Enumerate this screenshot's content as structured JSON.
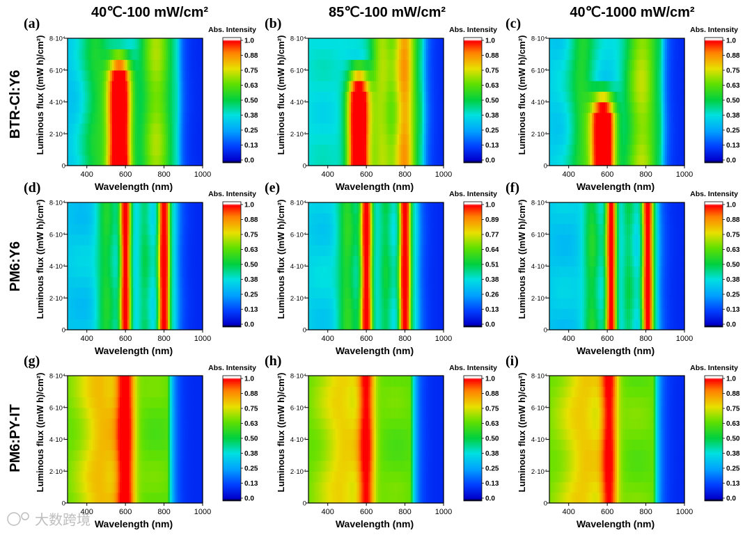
{
  "figure": {
    "column_titles": [
      "40℃-100 mW/cm²",
      "85℃-100 mW/cm²",
      "40℃-1000 mW/cm²"
    ],
    "row_titles": [
      "BTR-Cl:Y6",
      "PM6:Y6",
      "PM6:PY-IT"
    ],
    "watermark": "大数跨境"
  },
  "chart_data": [
    {
      "label": "(a)",
      "type": "heatmap",
      "row": 0,
      "col": 0,
      "material": "BTR-Cl:Y6",
      "condition": "40℃-100 mW/cm²",
      "xlabel": "Wavelength (nm)",
      "ylabel": "Luminous flux ((mW h)/cm²)",
      "xlim": [
        300,
        1000
      ],
      "ylim": [
        0,
        80000
      ],
      "xticks": [
        400,
        600,
        800,
        1000
      ],
      "yticks": [
        "0",
        "2·10⁴",
        "4·10⁴",
        "6·10⁴",
        "8·10⁴"
      ],
      "colorbar_title": "Abs. Intensity",
      "colorbar_ticks": [
        "1.0",
        "0.88",
        "0.75",
        "0.63",
        "0.50",
        "0.38",
        "0.25",
        "0.13",
        "0.0"
      ],
      "peaks": [
        {
          "center": 570,
          "width": 60,
          "amp": 0.95,
          "top_flux": 55000
        },
        {
          "center": 760,
          "width": 90,
          "amp": 0.35
        },
        {
          "center": 450,
          "width": 80,
          "amp": 0.2
        }
      ],
      "base": 0.32,
      "edge_nm": 870
    },
    {
      "label": "(b)",
      "type": "heatmap",
      "row": 0,
      "col": 1,
      "material": "BTR-Cl:Y6",
      "condition": "85℃-100 mW/cm²",
      "xlabel": "Wavelength (nm)",
      "ylabel": "Luminous flux ((mW h)/cm²)",
      "xlim": [
        300,
        1000
      ],
      "ylim": [
        0,
        80000
      ],
      "xticks": [
        400,
        600,
        800,
        1000
      ],
      "yticks": [
        "0",
        "2·10⁴",
        "4·10⁴",
        "6·10⁴",
        "8·10⁴"
      ],
      "colorbar_title": "Abs. Intensity",
      "colorbar_ticks": [
        "1.0",
        "0.88",
        "0.75",
        "0.63",
        "0.50",
        "0.38",
        "0.25",
        "0.13",
        "0.0"
      ],
      "peaks": [
        {
          "center": 560,
          "width": 55,
          "amp": 0.9,
          "top_flux": 45000
        },
        {
          "center": 800,
          "width": 60,
          "amp": 0.45
        },
        {
          "center": 680,
          "width": 60,
          "amp": 0.3
        }
      ],
      "base": 0.38,
      "edge_nm": 890
    },
    {
      "label": "(c)",
      "type": "heatmap",
      "row": 0,
      "col": 2,
      "material": "BTR-Cl:Y6",
      "condition": "40℃-1000 mW/cm²",
      "xlabel": "Wavelength (nm)",
      "ylabel": "Luminous flux ((mW h)/cm²)",
      "xlim": [
        300,
        1000
      ],
      "ylim": [
        0,
        80000
      ],
      "xticks": [
        400,
        600,
        800,
        1000
      ],
      "yticks": [
        "0",
        "2·10⁴",
        "4·10⁴",
        "6·10⁴",
        "8·10⁴"
      ],
      "colorbar_title": "Abs. Intensity",
      "colorbar_ticks": [
        "1.0",
        "0.88",
        "0.75",
        "0.63",
        "0.50",
        "0.38",
        "0.25",
        "0.13",
        "0.0"
      ],
      "peaks": [
        {
          "center": 580,
          "width": 60,
          "amp": 0.95,
          "top_flux": 30000
        },
        {
          "center": 780,
          "width": 90,
          "amp": 0.35
        },
        {
          "center": 470,
          "width": 70,
          "amp": 0.2
        }
      ],
      "base": 0.34,
      "edge_nm": 880
    },
    {
      "label": "(d)",
      "type": "heatmap",
      "row": 1,
      "col": 0,
      "material": "PM6:Y6",
      "condition": "40℃-100 mW/cm²",
      "xlabel": "Wavelength (nm)",
      "ylabel": "Luminous flux ((mW h)/cm²)",
      "xlim": [
        300,
        1000
      ],
      "ylim": [
        0,
        80000
      ],
      "xticks": [
        400,
        600,
        800,
        1000
      ],
      "yticks": [
        "0",
        "2·10⁴",
        "4·10⁴",
        "6·10⁴",
        "8·10⁴"
      ],
      "colorbar_title": "Abs. Intensity",
      "colorbar_ticks": [
        "1.0",
        "0.88",
        "0.75",
        "0.63",
        "0.50",
        "0.38",
        "0.25",
        "0.13",
        "0.0"
      ],
      "peaks": [
        {
          "center": 600,
          "width": 28,
          "amp": 0.75
        },
        {
          "center": 800,
          "width": 30,
          "amp": 0.78
        },
        {
          "center": 500,
          "width": 50,
          "amp": 0.2
        },
        {
          "center": 700,
          "width": 35,
          "amp": 0.15
        }
      ],
      "base": 0.33,
      "edge_nm": 860
    },
    {
      "label": "(e)",
      "type": "heatmap",
      "row": 1,
      "col": 1,
      "material": "PM6:Y6",
      "condition": "85℃-100 mW/cm²",
      "xlabel": "Wavelength (nm)",
      "ylabel": "Luminous flux ((mW h)/cm²)",
      "xlim": [
        300,
        1000
      ],
      "ylim": [
        0,
        80000
      ],
      "xticks": [
        400,
        600,
        800,
        1000
      ],
      "yticks": [
        "0",
        "2·10⁴",
        "4·10⁴",
        "6·10⁴",
        "8·10⁴"
      ],
      "colorbar_title": "Abs. Intensity",
      "colorbar_ticks": [
        "1.0",
        "0.89",
        "0.77",
        "0.64",
        "0.51",
        "0.38",
        "0.26",
        "0.13",
        "0.0"
      ],
      "peaks": [
        {
          "center": 600,
          "width": 30,
          "amp": 0.72
        },
        {
          "center": 800,
          "width": 30,
          "amp": 0.75
        },
        {
          "center": 500,
          "width": 50,
          "amp": 0.2
        },
        {
          "center": 700,
          "width": 35,
          "amp": 0.15
        }
      ],
      "base": 0.35,
      "edge_nm": 860
    },
    {
      "label": "(f)",
      "type": "heatmap",
      "row": 1,
      "col": 2,
      "material": "PM6:Y6",
      "condition": "40℃-1000 mW/cm²",
      "xlabel": "Wavelength (nm)",
      "ylabel": "Luminous flux ((mW h)/cm²)",
      "xlim": [
        300,
        1000
      ],
      "ylim": [
        0,
        80000
      ],
      "xticks": [
        400,
        600,
        800,
        1000
      ],
      "yticks": [
        "0",
        "2·10⁴",
        "4·10⁴",
        "6·10⁴",
        "8·10⁴"
      ],
      "colorbar_title": "Abs. Intensity",
      "colorbar_ticks": [
        "1.0",
        "0.88",
        "0.75",
        "0.63",
        "0.50",
        "0.38",
        "0.25",
        "0.13",
        "0.0"
      ],
      "peaks": [
        {
          "center": 620,
          "width": 28,
          "amp": 0.72
        },
        {
          "center": 810,
          "width": 30,
          "amp": 0.72
        },
        {
          "center": 520,
          "width": 45,
          "amp": 0.2
        },
        {
          "center": 710,
          "width": 35,
          "amp": 0.15
        }
      ],
      "base": 0.33,
      "edge_nm": 860
    },
    {
      "label": "(g)",
      "type": "heatmap",
      "row": 2,
      "col": 0,
      "material": "PM6:PY-IT",
      "condition": "40℃-100 mW/cm²",
      "xlabel": "Wavelength (nm)",
      "ylabel": "Luminous flux ((mW h)/cm²)",
      "xlim": [
        300,
        1000
      ],
      "ylim": [
        0,
        80000
      ],
      "xticks": [
        400,
        600,
        800,
        1000
      ],
      "yticks": [
        "0",
        "2·10⁴",
        "4·10⁴",
        "6·10⁴",
        "8·10⁴"
      ],
      "colorbar_title": "Abs. Intensity",
      "colorbar_ticks": [
        "1.0",
        "0.88",
        "0.75",
        "0.63",
        "0.50",
        "0.38",
        "0.25",
        "0.13",
        "0.0"
      ],
      "peaks": [
        {
          "center": 600,
          "width": 45,
          "amp": 0.4
        },
        {
          "center": 480,
          "width": 120,
          "amp": 0.18
        }
      ],
      "base": 0.62,
      "edge_nm": 820
    },
    {
      "label": "(h)",
      "type": "heatmap",
      "row": 2,
      "col": 1,
      "material": "PM6:PY-IT",
      "condition": "85℃-100 mW/cm²",
      "xlabel": "Wavelength (nm)",
      "ylabel": "Luminous flux ((mW h)/cm²)",
      "xlim": [
        300,
        1000
      ],
      "ylim": [
        0,
        80000
      ],
      "xticks": [
        400,
        600,
        800,
        1000
      ],
      "yticks": [
        "0",
        "2·10⁴",
        "4·10⁴",
        "6·10⁴",
        "8·10⁴"
      ],
      "colorbar_title": "Abs. Intensity",
      "colorbar_ticks": [
        "1.0",
        "0.88",
        "0.75",
        "0.63",
        "0.50",
        "0.38",
        "0.25",
        "0.13",
        "0.0"
      ],
      "peaks": [
        {
          "center": 600,
          "width": 40,
          "amp": 0.35
        },
        {
          "center": 480,
          "width": 120,
          "amp": 0.15
        }
      ],
      "base": 0.62,
      "edge_nm": 830
    },
    {
      "label": "(i)",
      "type": "heatmap",
      "row": 2,
      "col": 2,
      "material": "PM6:PY-IT",
      "condition": "40℃-1000 mW/cm²",
      "xlabel": "Wavelength (nm)",
      "ylabel": "Luminous flux ((mW h)/cm²)",
      "xlim": [
        300,
        1000
      ],
      "ylim": [
        0,
        80000
      ],
      "xticks": [
        400,
        600,
        800,
        1000
      ],
      "yticks": [
        "0",
        "2·10⁴",
        "4·10⁴",
        "6·10⁴",
        "8·10⁴"
      ],
      "colorbar_title": "Abs. Intensity",
      "colorbar_ticks": [
        "1.0",
        "0.88",
        "0.75",
        "0.63",
        "0.50",
        "0.38",
        "0.25",
        "0.13",
        "0.0"
      ],
      "peaks": [
        {
          "center": 610,
          "width": 40,
          "amp": 0.35
        },
        {
          "center": 480,
          "width": 120,
          "amp": 0.15
        }
      ],
      "base": 0.63,
      "edge_nm": 840
    }
  ]
}
